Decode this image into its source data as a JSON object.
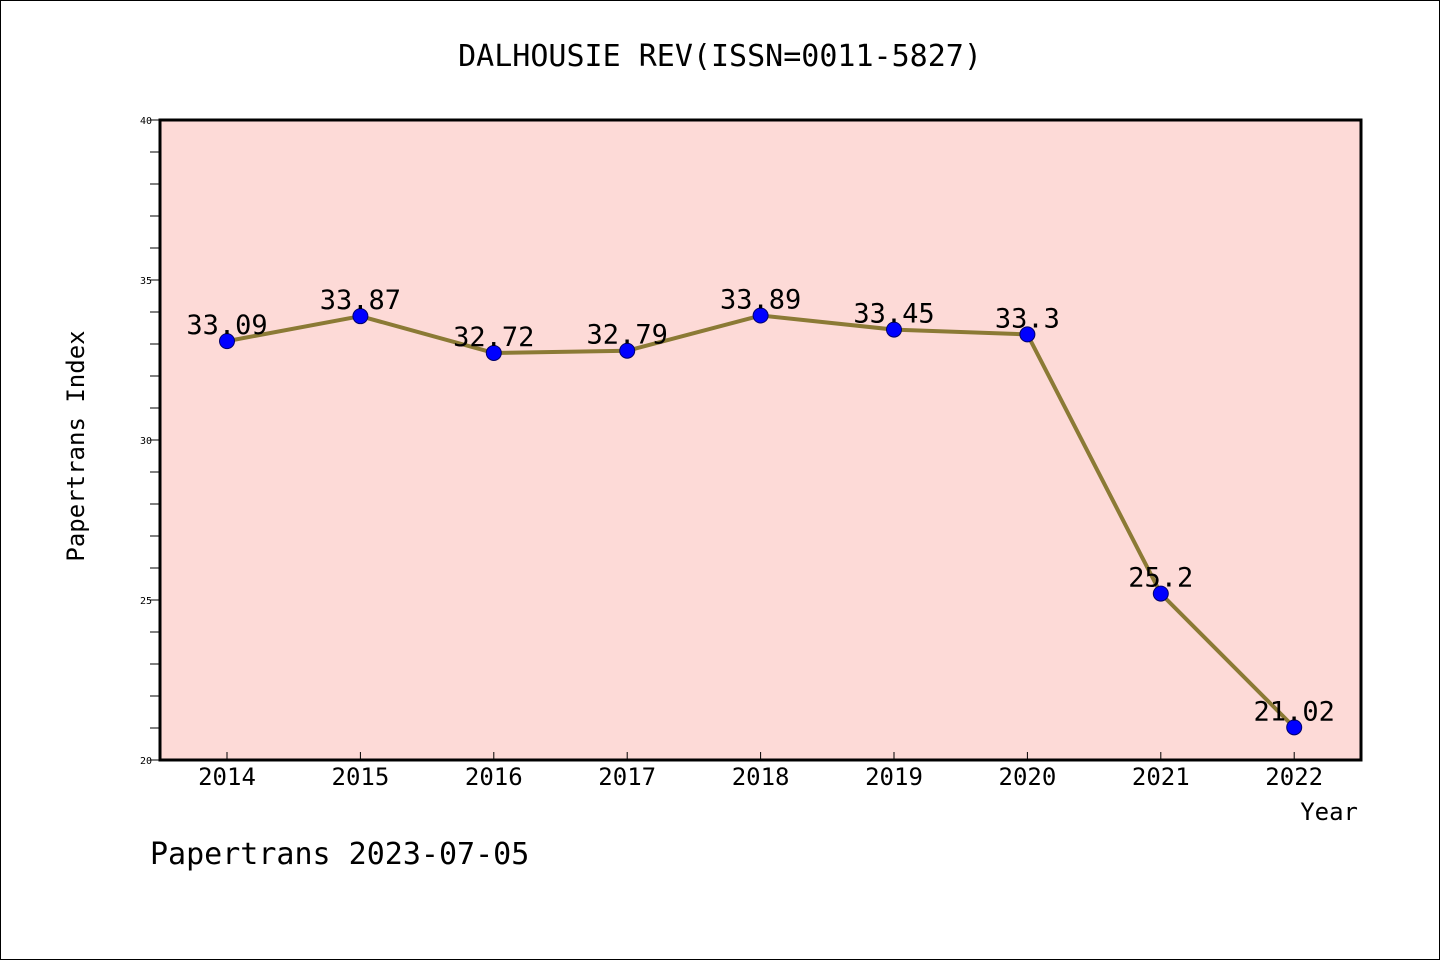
{
  "chart_data": {
    "type": "line",
    "title": "DALHOUSIE REV(ISSN=0011-5827)",
    "xlabel": "Year",
    "ylabel": "Papertrans Index",
    "x": [
      "2014",
      "2015",
      "2016",
      "2017",
      "2018",
      "2019",
      "2020",
      "2021",
      "2022"
    ],
    "series": [
      {
        "values": [
          33.09,
          33.87,
          32.72,
          32.79,
          33.89,
          33.45,
          33.3,
          25.2,
          21.02
        ],
        "labels": [
          "33.09",
          "33.87",
          "32.72",
          "32.79",
          "33.89",
          "33.45",
          "33.3",
          "25.2",
          "21.02"
        ]
      }
    ],
    "ylim": [
      20,
      40
    ],
    "yticks": [
      "20",
      "25",
      "30",
      "35",
      "40"
    ],
    "grid": false,
    "footer": "Papertrans 2023-07-05",
    "colors": {
      "plot_background": "#fddad7",
      "line": "#8b7a35",
      "marker": "#0000ff",
      "axis": "#000000"
    }
  }
}
